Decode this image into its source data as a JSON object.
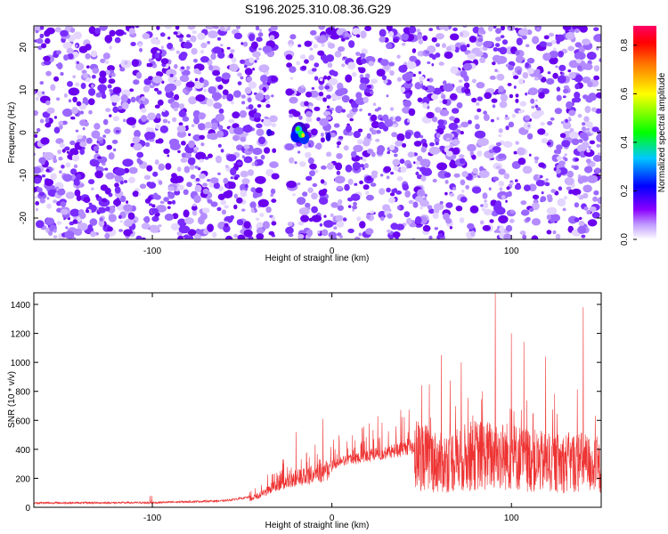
{
  "figure_title": "S196.2025.310.08.36.G29",
  "chart_data": [
    {
      "type": "heatmap",
      "xlabel": "Height of straight line (km)",
      "ylabel": "Frequency (Hz)",
      "xlim": [
        -166,
        150
      ],
      "ylim": [
        -25,
        25
      ],
      "x_ticks": [
        -100,
        0,
        100
      ],
      "y_ticks": [
        -20,
        -10,
        0,
        10,
        20
      ],
      "colorbar": {
        "label": "Normalized spectral amplitude",
        "range": [
          0,
          0.88
        ],
        "ticks": [
          0.0,
          0.2,
          0.4,
          0.6,
          0.8
        ],
        "colormap": [
          "#ffffff",
          "#8a00ff",
          "#0000ff",
          "#00c8ff",
          "#00ff00",
          "#ffff00",
          "#ff9900",
          "#ff0000",
          "#ff0066"
        ]
      },
      "background_noise_level": 0.05,
      "empty_band_x": [
        -31,
        -24
      ],
      "peaks": [
        {
          "x": -18,
          "y": 0,
          "value": 0.5
        },
        {
          "x": -16,
          "y": -1,
          "value": 0.6
        }
      ]
    },
    {
      "type": "line",
      "xlabel": "Height of straight line (km)",
      "ylabel": "SNR (10 * v/v)",
      "xlim": [
        -166,
        150
      ],
      "ylim": [
        0,
        1480
      ],
      "x_ticks": [
        -100,
        0,
        100
      ],
      "y_ticks": [
        0,
        200,
        400,
        600,
        800,
        1000,
        1200,
        1400
      ],
      "series_color": "#ee3333",
      "trend_points": [
        [
          -166,
          30
        ],
        [
          -100,
          32
        ],
        [
          -60,
          45
        ],
        [
          -46,
          70
        ],
        [
          -40,
          110
        ],
        [
          -30,
          200
        ],
        [
          -20,
          260
        ],
        [
          -10,
          290
        ],
        [
          0,
          330
        ],
        [
          20,
          400
        ],
        [
          40,
          450
        ],
        [
          46,
          470
        ],
        [
          60,
          380
        ],
        [
          80,
          450
        ],
        [
          100,
          440
        ],
        [
          120,
          380
        ],
        [
          140,
          390
        ],
        [
          150,
          330
        ]
      ],
      "peak_values": [
        {
          "x": 91,
          "y": 1480
        },
        {
          "x": 140,
          "y": 1380
        },
        {
          "x": 100,
          "y": 1200
        },
        {
          "x": 107,
          "y": 1140
        },
        {
          "x": 61,
          "y": 1050
        },
        {
          "x": 72,
          "y": 1000
        },
        {
          "x": 119,
          "y": 1040
        },
        {
          "x": -5,
          "y": 610
        },
        {
          "x": -20,
          "y": 520
        }
      ]
    }
  ]
}
